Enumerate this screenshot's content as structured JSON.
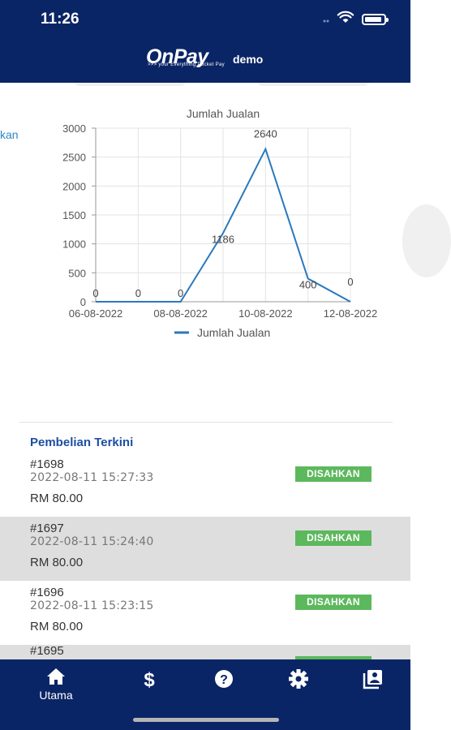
{
  "status_bar": {
    "time": "11:26"
  },
  "header": {
    "logo": "OnPay",
    "logo_tagline": ">>> your Everything Pocket Pay",
    "merchant": "demo"
  },
  "peek_text": "kan",
  "chart_data": {
    "type": "line",
    "title": "Jumlah Jualan",
    "x": [
      "06-08-2022",
      "07-08-2022",
      "08-08-2022",
      "09-08-2022",
      "10-08-2022",
      "11-08-2022",
      "12-08-2022"
    ],
    "x_tick_labels": [
      "06-08-2022",
      "08-08-2022",
      "10-08-2022",
      "12-08-2022"
    ],
    "series": [
      {
        "name": "Jumlah Jualan",
        "values": [
          0,
          0,
          0,
          1186,
          2640,
          400,
          0
        ],
        "color": "#2a78bd"
      }
    ],
    "data_labels": [
      "0",
      "0",
      "0",
      "1186",
      "2640",
      "400",
      "0"
    ],
    "ylim": [
      0,
      3000
    ],
    "y_ticks": [
      0,
      500,
      1000,
      1500,
      2000,
      2500,
      3000
    ],
    "grid": true,
    "legend": "bottom"
  },
  "recent": {
    "title": "Pembelian Terkini",
    "items": [
      {
        "id": "#1698",
        "datetime": "2022-08-11 15:27:33",
        "amount": "RM 80.00",
        "status": "DISAHKAN"
      },
      {
        "id": "#1697",
        "datetime": "2022-08-11 15:24:40",
        "amount": "RM 80.00",
        "status": "DISAHKAN"
      },
      {
        "id": "#1696",
        "datetime": "2022-08-11 15:23:15",
        "amount": "RM 80.00",
        "status": "DISAHKAN"
      },
      {
        "id": "#1695",
        "datetime": "",
        "amount": "",
        "status": ""
      }
    ]
  },
  "nav": {
    "home_label": "Utama",
    "items": [
      {
        "icon": "home-icon"
      },
      {
        "icon": "dollar-icon"
      },
      {
        "icon": "help-icon"
      },
      {
        "icon": "settings-icon"
      },
      {
        "icon": "gallery-icon"
      }
    ]
  }
}
